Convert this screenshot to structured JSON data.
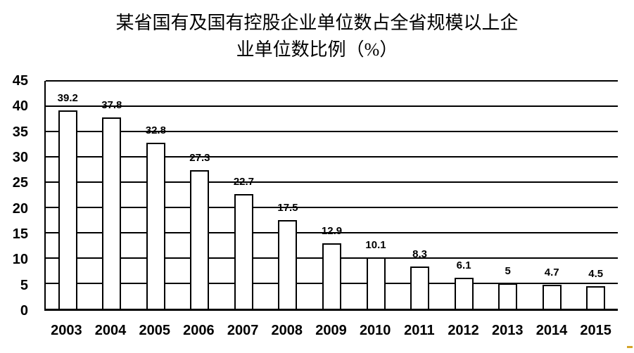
{
  "title": {
    "line1": "某省国有及国有控股企业单位数占全省规模以上企",
    "line2": "业单位数比例（%）"
  },
  "chart_data": {
    "type": "bar",
    "title": "某省国有及国有控股企业单位数占全省规模以上企业单位数比例（%）",
    "categories": [
      "2003",
      "2004",
      "2005",
      "2006",
      "2007",
      "2008",
      "2009",
      "2010",
      "2011",
      "2012",
      "2013",
      "2014",
      "2015"
    ],
    "values": [
      39.2,
      37.8,
      32.8,
      27.3,
      22.7,
      17.5,
      12.9,
      10.1,
      8.3,
      6.1,
      5,
      4.7,
      4.5
    ],
    "value_labels": [
      "39.2",
      "37.8",
      "32.8",
      "27.3",
      "22.7",
      "17.5",
      "12.9",
      "10.1",
      "8.3",
      "6.1",
      "5",
      "4.7",
      "4.5"
    ],
    "xlabel": "",
    "ylabel": "",
    "ylim": [
      0,
      45
    ],
    "yticks": [
      0,
      5,
      10,
      15,
      20,
      25,
      30,
      35,
      40,
      45
    ],
    "grid": true,
    "legend": false,
    "colors": {
      "bar_fill": "#ffffff",
      "bar_border": "#000000",
      "gridline": "#000000",
      "text": "#000000"
    }
  },
  "artifact": {
    "color": "#d4a42a"
  }
}
